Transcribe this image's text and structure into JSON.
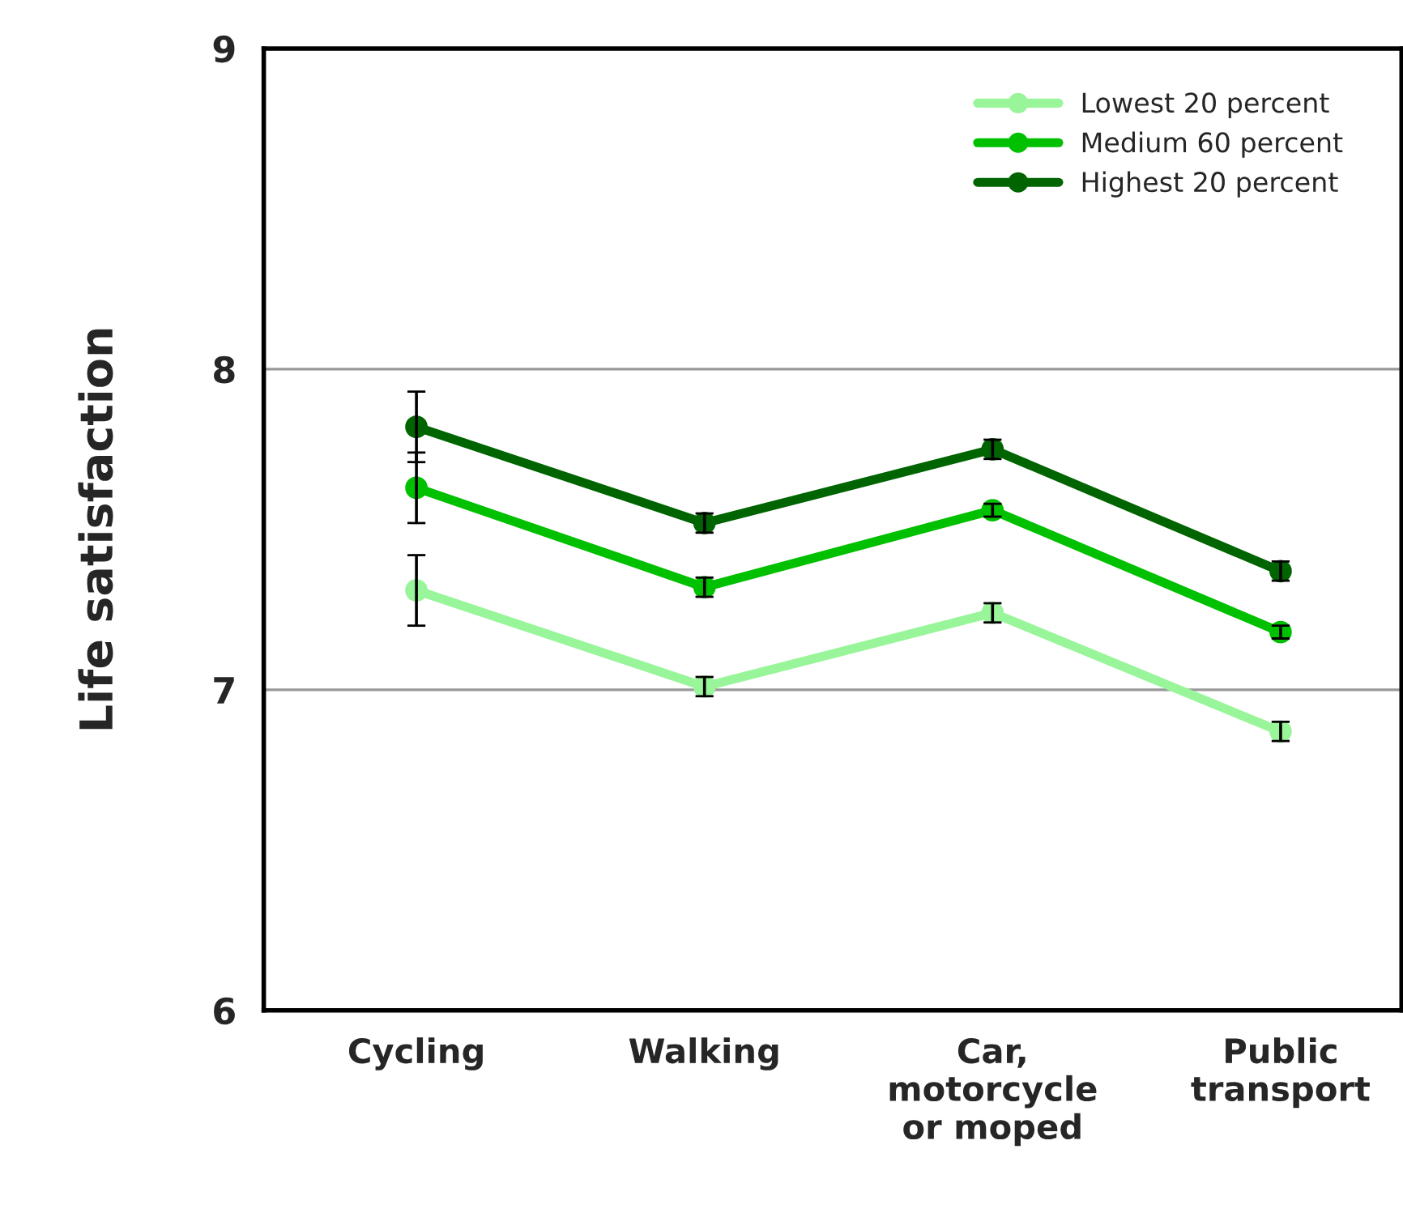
{
  "chart_data": {
    "type": "line",
    "ylabel": "Life satisfaction",
    "categories": [
      "Cycling",
      "Walking",
      "Car,\nmotorcycle\nor moped",
      "Public\ntransport"
    ],
    "series": [
      {
        "name": "Lowest 20 percent",
        "color": "#99f599",
        "values": [
          7.31,
          7.01,
          7.24,
          6.87
        ],
        "errors": [
          0.11,
          0.03,
          0.03,
          0.03
        ]
      },
      {
        "name": "Medium 60 percent",
        "color": "#00c000",
        "values": [
          7.63,
          7.32,
          7.56,
          7.18
        ],
        "errors": [
          0.11,
          0.03,
          0.02,
          0.02
        ]
      },
      {
        "name": "Highest 20 percent",
        "color": "#006400",
        "values": [
          7.82,
          7.52,
          7.75,
          7.37
        ],
        "errors": [
          0.11,
          0.03,
          0.03,
          0.03
        ]
      }
    ],
    "ylim": [
      6,
      9
    ],
    "yticks": [
      6,
      7,
      8,
      9
    ],
    "grid": "y",
    "legend": "top right",
    "marker": "circle",
    "line_style": "solid"
  }
}
